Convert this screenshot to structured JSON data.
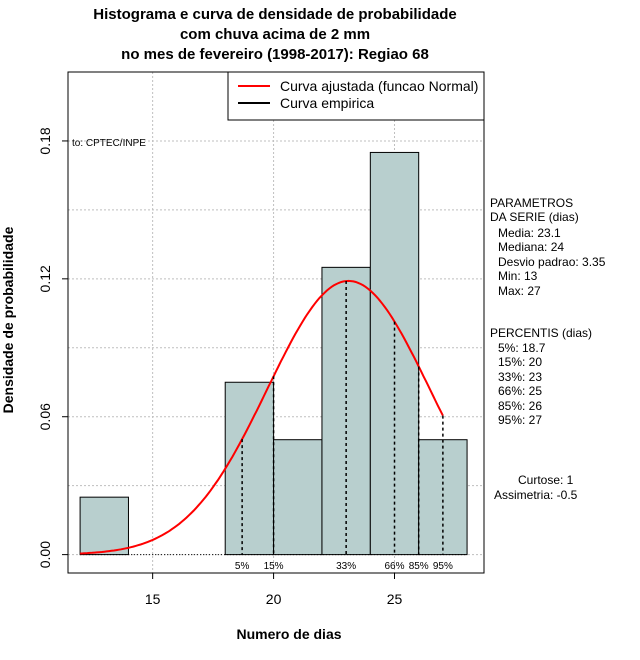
{
  "title_lines": [
    "Histograma e curva de densidade de probabilidade",
    "com chuva acima de 2 mm",
    "no mes de fevereiro (1998-2017): Regiao 68"
  ],
  "source_note": "to: CPTEC/INPE",
  "legend": {
    "fitted": "Curva ajustada (funcao Normal)",
    "empirical": "Curva empirica"
  },
  "params": {
    "heading1": "PARAMETROS",
    "heading2": "DA SERIE (dias)",
    "items": [
      "Media: 23.1",
      "Mediana: 24",
      "Desvio padrao: 3.35",
      "Min: 13",
      "Max: 27"
    ]
  },
  "percentis": {
    "heading": "PERCENTIS (dias)",
    "items": [
      "5%: 18.7",
      "15%: 20",
      "33%: 23",
      "66%: 25",
      "85%: 26",
      "95%: 27"
    ]
  },
  "curtose": "Curtose: 1",
  "assimetria": "Assimetria: -0.5",
  "colors": {
    "bars": "#b8cfce",
    "fitted": "#ff0000",
    "empirical": "#000000",
    "grid": "#bfbfbf"
  },
  "chart_data": {
    "type": "bar",
    "xlabel": "Numero de dias",
    "ylabel": "Densidade de probabilidade",
    "xlim": [
      11.5,
      28.7
    ],
    "ylim": [
      -0.008,
      0.21
    ],
    "x_ticks": [
      15,
      20,
      25
    ],
    "y_ticks": [
      0.0,
      0.06,
      0.12,
      0.18
    ],
    "y_tick_labels": [
      "0.00",
      "0.06",
      "0.12",
      "0.18"
    ],
    "bins": [
      {
        "start": 12,
        "end": 14,
        "density": 0.025
      },
      {
        "start": 14,
        "end": 16,
        "density": 0.0
      },
      {
        "start": 16,
        "end": 18,
        "density": 0.0
      },
      {
        "start": 18,
        "end": 20,
        "density": 0.075
      },
      {
        "start": 20,
        "end": 22,
        "density": 0.05
      },
      {
        "start": 22,
        "end": 24,
        "density": 0.125
      },
      {
        "start": 24,
        "end": 26,
        "density": 0.175
      },
      {
        "start": 26,
        "end": 28,
        "density": 0.05
      }
    ],
    "normal_fit": {
      "mean": 23.1,
      "sd": 3.35,
      "x_from": 12,
      "x_to": 27
    },
    "percentile_marks": [
      {
        "label": "5%",
        "x": 18.7
      },
      {
        "label": "15%",
        "x": 20
      },
      {
        "label": "33%",
        "x": 23
      },
      {
        "label": "66%",
        "x": 25
      },
      {
        "label": "85%",
        "x": 26
      },
      {
        "label": "95%",
        "x": 27
      }
    ],
    "legend_position": "top-right",
    "grid": true
  }
}
